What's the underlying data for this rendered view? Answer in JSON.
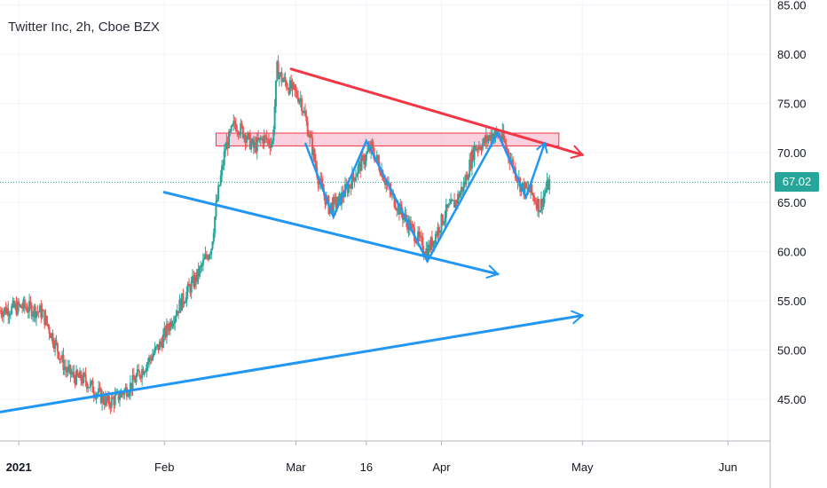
{
  "title": "Twitter Inc, 2h, Cboe BZX",
  "colors": {
    "background": "#ffffff",
    "grid": "#f0f3fa",
    "axis_text": "#131722",
    "candle_up": "#26a69a",
    "candle_down": "#ef5350",
    "trend_blue": "#2196f3",
    "trend_red": "#f23645",
    "zone_fill": "#f8bbd0",
    "price_tag": "#26a69a"
  },
  "last_price": {
    "label": "67.02",
    "value": 67.02
  },
  "chart_data": {
    "type": "candlestick",
    "x_tick_labels": [
      "2021",
      "Feb",
      "Mar",
      "16",
      "Apr",
      "May",
      "Jun"
    ],
    "y_tick_labels": [
      "45.00",
      "50.00",
      "55.00",
      "60.00",
      "65.00",
      "70.00",
      "75.00",
      "80.00",
      "85.00"
    ],
    "ylim": [
      40.5,
      85.5
    ],
    "xlim": [
      "2020-12-28",
      "2021-06-10"
    ],
    "grid": true,
    "price_path": [
      [
        "2020-12-28",
        54.0
      ],
      [
        "2021-01-02",
        54.4
      ],
      [
        "2021-01-06",
        53.8
      ],
      [
        "2021-01-08",
        51.5
      ],
      [
        "2021-01-11",
        48.0
      ],
      [
        "2021-01-13",
        47.2
      ],
      [
        "2021-01-15",
        47.0
      ],
      [
        "2021-01-18",
        45.5
      ],
      [
        "2021-01-20",
        44.6
      ],
      [
        "2021-01-22",
        45.2
      ],
      [
        "2021-01-25",
        46.5
      ],
      [
        "2021-01-28",
        48.5
      ],
      [
        "2021-01-31",
        50.5
      ],
      [
        "2021-02-03",
        53.5
      ],
      [
        "2021-02-06",
        56.0
      ],
      [
        "2021-02-08",
        57.5
      ],
      [
        "2021-02-10",
        59.5
      ],
      [
        "2021-02-11",
        60.5
      ],
      [
        "2021-02-12",
        64.5
      ],
      [
        "2021-02-14",
        70.5
      ],
      [
        "2021-02-16",
        73.0
      ],
      [
        "2021-02-18",
        72.0
      ],
      [
        "2021-02-20",
        70.5
      ],
      [
        "2021-02-22",
        71.5
      ],
      [
        "2021-02-24",
        71.0
      ],
      [
        "2021-02-25",
        78.5
      ],
      [
        "2021-02-26",
        77.5
      ],
      [
        "2021-02-28",
        76.5
      ],
      [
        "2021-03-02",
        75.5
      ],
      [
        "2021-03-04",
        71.5
      ],
      [
        "2021-03-06",
        67.0
      ],
      [
        "2021-03-08",
        64.5
      ],
      [
        "2021-03-10",
        65.0
      ],
      [
        "2021-03-12",
        66.5
      ],
      [
        "2021-03-15",
        69.0
      ],
      [
        "2021-03-17",
        70.5
      ],
      [
        "2021-03-19",
        68.5
      ],
      [
        "2021-03-21",
        66.0
      ],
      [
        "2021-03-24",
        63.5
      ],
      [
        "2021-03-26",
        62.0
      ],
      [
        "2021-03-28",
        60.5
      ],
      [
        "2021-03-29",
        60.0
      ],
      [
        "2021-03-31",
        62.0
      ],
      [
        "2021-04-02",
        64.0
      ],
      [
        "2021-04-04",
        65.0
      ],
      [
        "2021-04-06",
        67.0
      ],
      [
        "2021-04-08",
        70.5
      ],
      [
        "2021-04-10",
        71.0
      ],
      [
        "2021-04-12",
        72.0
      ],
      [
        "2021-04-14",
        71.5
      ],
      [
        "2021-04-16",
        69.0
      ],
      [
        "2021-04-18",
        66.5
      ],
      [
        "2021-04-20",
        66.0
      ],
      [
        "2021-04-22",
        64.5
      ],
      [
        "2021-04-23",
        66.0
      ],
      [
        "2021-04-24",
        67.0
      ]
    ],
    "annotations": {
      "resistance_line_red": [
        [
          "2021-02-28",
          78.5
        ],
        [
          "2021-05-01",
          69.8
        ]
      ],
      "resistance_zone": {
        "from": "2021-02-12",
        "to": "2021-04-26",
        "low": 70.7,
        "high": 72.0
      },
      "support_line_blue": [
        [
          "2021-02-01",
          66.0
        ],
        [
          "2021-04-13",
          57.7
        ]
      ],
      "long_support_line_blue": [
        [
          "2020-12-28",
          43.7
        ],
        [
          "2021-05-01",
          53.5
        ]
      ],
      "zigzag_pattern": [
        [
          "2021-03-03",
          71.0
        ],
        [
          "2021-03-09",
          63.5
        ],
        [
          "2021-03-16",
          71.2
        ],
        [
          "2021-03-29",
          59.0
        ],
        [
          "2021-04-13",
          72.0
        ],
        [
          "2021-04-19",
          65.5
        ],
        [
          "2021-04-23",
          71.0
        ]
      ]
    }
  }
}
